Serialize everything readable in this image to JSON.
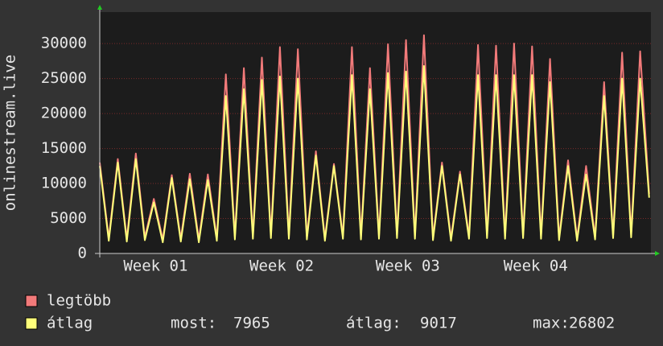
{
  "chart_data": {
    "type": "line",
    "y_label": "onlinestream.live",
    "x": [
      0,
      0.5,
      1,
      1.5,
      2,
      2.5,
      3,
      3.5,
      4,
      4.5,
      5,
      5.5,
      6,
      6.5,
      7,
      7.5,
      8,
      8.5,
      9,
      9.5,
      10,
      10.5,
      11,
      11.5,
      12,
      12.5,
      13,
      13.5,
      14,
      14.5,
      15,
      15.5,
      16,
      16.5,
      17,
      17.5,
      18,
      18.5,
      19,
      19.5,
      20,
      20.5,
      21,
      21.5,
      22,
      22.5,
      23,
      23.5,
      24,
      24.5,
      25,
      25.5,
      26,
      26.5,
      27,
      27.5,
      28,
      28.5,
      29,
      29.5,
      30,
      30.5
    ],
    "series": [
      {
        "name": "legtöbb",
        "color": "#f27a7a",
        "values": [
          13000,
          2200,
          13500,
          2100,
          14300,
          2300,
          7800,
          2000,
          11200,
          2100,
          11400,
          2000,
          11300,
          2200,
          25600,
          2400,
          26500,
          2500,
          28000,
          2600,
          29500,
          2500,
          29200,
          2400,
          14600,
          2200,
          12800,
          2500,
          29500,
          2400,
          26500,
          2500,
          29900,
          2600,
          30500,
          2500,
          31200,
          2300,
          13000,
          2200,
          11700,
          2500,
          29800,
          2600,
          29700,
          2500,
          30000,
          2600,
          29600,
          2500,
          27800,
          2300,
          13300,
          2200,
          12500,
          2400,
          24500,
          2600,
          28700,
          2700,
          28900,
          8500
        ]
      },
      {
        "name": "átlag",
        "color": "#ffff7a",
        "values": [
          12500,
          1800,
          13000,
          1700,
          13500,
          1900,
          7300,
          1600,
          10800,
          1700,
          10600,
          1600,
          10500,
          1800,
          22500,
          2000,
          23500,
          2100,
          24800,
          2200,
          25300,
          2100,
          25000,
          2000,
          14000,
          1800,
          12500,
          2100,
          25500,
          2000,
          23500,
          2100,
          25800,
          2200,
          26000,
          2100,
          26800,
          1900,
          12500,
          1800,
          11300,
          2100,
          25500,
          2200,
          25500,
          2100,
          25500,
          2200,
          25500,
          2100,
          24500,
          1900,
          12500,
          1800,
          11300,
          2000,
          22500,
          2200,
          25000,
          2300,
          25000,
          7965
        ]
      }
    ],
    "xlim": [
      0,
      30.6
    ],
    "xticks": [
      {
        "value": 3.1,
        "label": "Week 01"
      },
      {
        "value": 10.1,
        "label": "Week 02"
      },
      {
        "value": 17.1,
        "label": "Week 03"
      },
      {
        "value": 24.2,
        "label": "Week 04"
      }
    ],
    "ylim": [
      0,
      34500
    ],
    "yticks": [
      0,
      5000,
      10000,
      15000,
      20000,
      25000,
      30000
    ],
    "grid": true,
    "stats": [
      {
        "label": "most:",
        "value": 7965
      },
      {
        "label": "átlag:",
        "value": 9017
      },
      {
        "label": "max:",
        "value": 26802
      }
    ]
  }
}
